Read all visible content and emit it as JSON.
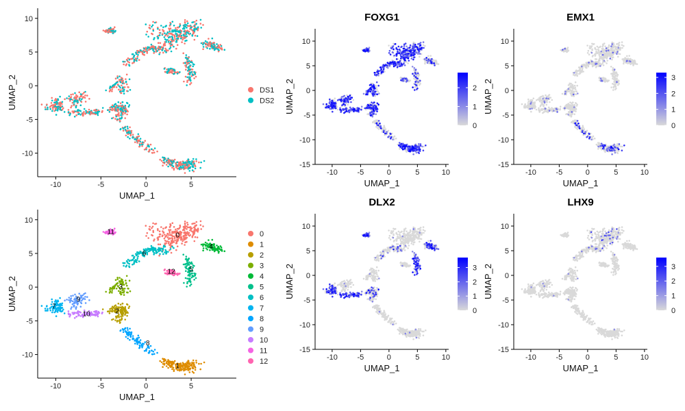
{
  "figure": {
    "background": "#ffffff"
  },
  "chart_data": [
    {
      "id": "p1",
      "type": "scatter",
      "title": "",
      "xlabel": "UMAP_1",
      "ylabel": "UMAP_2",
      "xlim": [
        -12,
        10
      ],
      "ylim": [
        -13.5,
        11.5
      ],
      "xticks": [
        -10,
        -5,
        0,
        5
      ],
      "yticks": [
        -10,
        -5,
        0,
        5,
        10
      ],
      "color_mode": "group",
      "legend": {
        "position": "right",
        "entries": [
          {
            "label": "DS1",
            "color": "#F8766D"
          },
          {
            "label": "DS2",
            "color": "#00BFC4"
          }
        ]
      }
    },
    {
      "id": "p2",
      "type": "scatter",
      "title": "FOXG1",
      "xlabel": "UMAP_1",
      "ylabel": "UMAP_2",
      "xlim": [
        -13,
        10.5
      ],
      "ylim": [
        -15,
        12.5
      ],
      "xticks": [
        -10,
        -5,
        0,
        5,
        10
      ],
      "yticks": [
        -15,
        -10,
        -5,
        0,
        5,
        10
      ],
      "color_mode": "expression",
      "expr_pattern": "broad",
      "colorbar": {
        "low": "#D9D9D9",
        "high": "#0000FF",
        "max": 2.8,
        "ticks": [
          0,
          1,
          2
        ]
      }
    },
    {
      "id": "p3",
      "type": "scatter",
      "title": "EMX1",
      "xlabel": "UMAP_1",
      "ylabel": "UMAP_2",
      "xlim": [
        -13,
        10.5
      ],
      "ylim": [
        -15,
        12.5
      ],
      "xticks": [
        -10,
        -5,
        0,
        5,
        10
      ],
      "yticks": [
        -15,
        -10,
        -5,
        0,
        5,
        10
      ],
      "color_mode": "expression",
      "expr_pattern": "sparse",
      "colorbar": {
        "low": "#D9D9D9",
        "high": "#0000FF",
        "max": 3.3,
        "ticks": [
          0,
          1,
          2,
          3
        ]
      }
    },
    {
      "id": "p4",
      "type": "scatter",
      "title": "",
      "xlabel": "UMAP_1",
      "ylabel": "UMAP_2",
      "xlim": [
        -12,
        10
      ],
      "ylim": [
        -13.5,
        11.5
      ],
      "xticks": [
        -10,
        -5,
        0,
        5
      ],
      "yticks": [
        -10,
        -5,
        0,
        5,
        10
      ],
      "color_mode": "cluster",
      "legend": {
        "position": "right",
        "entries": [
          {
            "label": "0",
            "color": "#F8766D"
          },
          {
            "label": "1",
            "color": "#DE8C00"
          },
          {
            "label": "2",
            "color": "#B79F00"
          },
          {
            "label": "3",
            "color": "#7CAE00"
          },
          {
            "label": "4",
            "color": "#00BA38"
          },
          {
            "label": "5",
            "color": "#00C08B"
          },
          {
            "label": "6",
            "color": "#00BFC4"
          },
          {
            "label": "7",
            "color": "#00B4F0"
          },
          {
            "label": "8",
            "color": "#00A5FF"
          },
          {
            "label": "9",
            "color": "#619CFF"
          },
          {
            "label": "10",
            "color": "#C77CFF"
          },
          {
            "label": "11",
            "color": "#F564E3"
          },
          {
            "label": "12",
            "color": "#FF64B0"
          }
        ]
      },
      "cluster_labels": [
        {
          "label": "0",
          "x": 3.5,
          "y": 7.7
        },
        {
          "label": "1",
          "x": 3.5,
          "y": -11.7
        },
        {
          "label": "2",
          "x": -3.2,
          "y": -3.6
        },
        {
          "label": "3",
          "x": -2.8,
          "y": 0.0
        },
        {
          "label": "4",
          "x": 7.2,
          "y": 6.0
        },
        {
          "label": "5",
          "x": 5.0,
          "y": 2.6
        },
        {
          "label": "6",
          "x": -0.2,
          "y": 5.0
        },
        {
          "label": "7",
          "x": -10.2,
          "y": -2.9
        },
        {
          "label": "8",
          "x": 0.2,
          "y": -8.3
        },
        {
          "label": "9",
          "x": -7.5,
          "y": -1.8
        },
        {
          "label": "10",
          "x": -6.6,
          "y": -4.0
        },
        {
          "label": "11",
          "x": -3.9,
          "y": 8.2
        },
        {
          "label": "12",
          "x": 2.8,
          "y": 2.3
        }
      ]
    },
    {
      "id": "p5",
      "type": "scatter",
      "title": "DLX2",
      "xlabel": "UMAP_1",
      "ylabel": "UMAP_2",
      "xlim": [
        -13,
        10.5
      ],
      "ylim": [
        -15,
        12.5
      ],
      "xticks": [
        -10,
        -5,
        0,
        5,
        10
      ],
      "yticks": [
        -15,
        -10,
        -5,
        0,
        5,
        10
      ],
      "color_mode": "expression",
      "expr_pattern": "dlx",
      "colorbar": {
        "low": "#D9D9D9",
        "high": "#0000FF",
        "max": 3.7,
        "ticks": [
          0,
          1,
          2,
          3
        ]
      }
    },
    {
      "id": "p6",
      "type": "scatter",
      "title": "LHX9",
      "xlabel": "UMAP_1",
      "ylabel": "UMAP_2",
      "xlim": [
        -13,
        10.5
      ],
      "ylim": [
        -15,
        12.5
      ],
      "xticks": [
        -10,
        -5,
        0,
        5,
        10
      ],
      "yticks": [
        -15,
        -10,
        -5,
        0,
        5,
        10
      ],
      "color_mode": "expression",
      "expr_pattern": "lhx",
      "colorbar": {
        "low": "#D9D9D9",
        "high": "#0000FF",
        "max": 3.6,
        "ticks": [
          0,
          1,
          2,
          3
        ]
      }
    }
  ]
}
